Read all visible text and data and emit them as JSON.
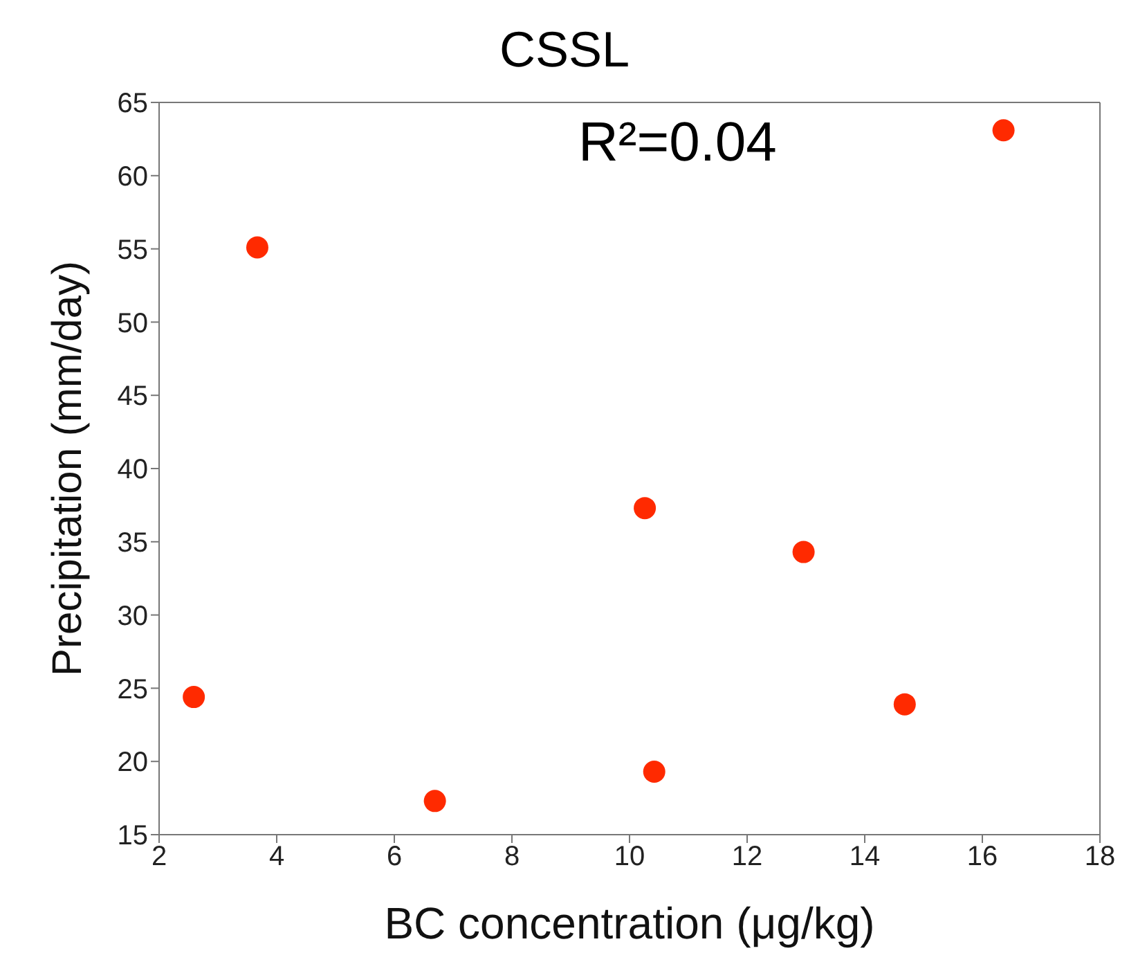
{
  "chart_data": {
    "type": "scatter",
    "title": "CSSL",
    "xlabel": "BC concentration (μg/kg)",
    "ylabel": "Precipitation (mm/day)",
    "annotations": [
      "R²=0.04"
    ],
    "x": [
      2.59,
      3.67,
      6.69,
      10.26,
      10.42,
      12.96,
      14.68,
      16.36
    ],
    "series": [
      {
        "color": "#ff2a00",
        "values": [
          24.4,
          55.1,
          17.3,
          37.3,
          19.3,
          34.3,
          23.9,
          63.1
        ]
      }
    ],
    "marker": "circle",
    "xlim": [
      2,
      18
    ],
    "xticks": [
      2,
      4,
      6,
      8,
      10,
      12,
      14,
      16,
      18
    ],
    "ylim": [
      15,
      65
    ],
    "yticks": [
      15,
      20,
      25,
      30,
      35,
      40,
      45,
      50,
      55,
      60,
      65
    ],
    "grid": false,
    "legend": false
  }
}
